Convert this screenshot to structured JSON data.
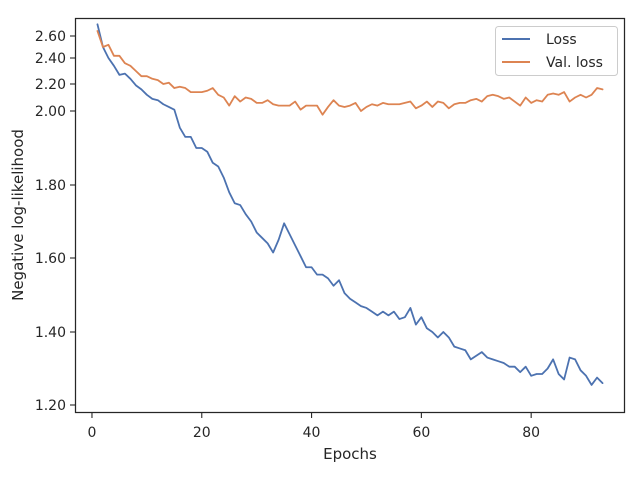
{
  "chart_data": {
    "type": "line",
    "title": "",
    "xlabel": "Epochs",
    "ylabel": "Negative log-likelihood",
    "xlim": [
      -3,
      97
    ],
    "ylim": [
      1.175,
      2.705
    ],
    "x_ticks": [
      0,
      20,
      40,
      60,
      80
    ],
    "y_ticks": [
      1.2,
      1.4,
      1.6,
      1.8,
      2.0,
      2.2,
      2.4,
      2.6
    ],
    "y_tick_labels": [
      "1.20",
      "1.40",
      "1.60",
      "1.80",
      "2.00",
      "2.20",
      "2.40",
      "2.60"
    ],
    "y_scale": "nonlinear (axis spacing compresses above 2.0)",
    "legend_position": "top-right",
    "grid": false,
    "series": [
      {
        "name": "Loss",
        "color": "#4c72b0",
        "x": [
          1,
          2,
          3,
          4,
          5,
          6,
          7,
          8,
          9,
          10,
          11,
          12,
          13,
          14,
          15,
          16,
          17,
          18,
          19,
          20,
          21,
          22,
          23,
          24,
          25,
          26,
          27,
          28,
          29,
          30,
          31,
          32,
          33,
          34,
          35,
          36,
          37,
          38,
          39,
          40,
          41,
          42,
          43,
          44,
          45,
          46,
          47,
          48,
          49,
          50,
          51,
          52,
          53,
          54,
          55,
          56,
          57,
          58,
          59,
          60,
          61,
          62,
          63,
          64,
          65,
          66,
          67,
          68,
          69,
          70,
          71,
          72,
          73,
          74,
          75,
          76,
          77,
          78,
          79,
          80,
          81,
          82,
          83,
          84,
          85,
          86,
          87,
          88,
          89,
          90,
          91,
          92,
          93
        ],
        "values": [
          2.67,
          2.5,
          2.4,
          2.34,
          2.27,
          2.28,
          2.24,
          2.19,
          2.16,
          2.12,
          2.09,
          2.08,
          2.05,
          2.03,
          2.01,
          1.955,
          1.93,
          1.93,
          1.9,
          1.9,
          1.89,
          1.86,
          1.85,
          1.82,
          1.78,
          1.75,
          1.745,
          1.72,
          1.7,
          1.67,
          1.655,
          1.64,
          1.615,
          1.65,
          1.695,
          1.665,
          1.635,
          1.605,
          1.575,
          1.575,
          1.555,
          1.555,
          1.545,
          1.525,
          1.54,
          1.505,
          1.49,
          1.48,
          1.47,
          1.465,
          1.455,
          1.445,
          1.455,
          1.445,
          1.455,
          1.435,
          1.44,
          1.465,
          1.42,
          1.44,
          1.41,
          1.4,
          1.385,
          1.4,
          1.385,
          1.36,
          1.355,
          1.35,
          1.325,
          1.335,
          1.345,
          1.33,
          1.325,
          1.32,
          1.315,
          1.305,
          1.305,
          1.29,
          1.305,
          1.28,
          1.285,
          1.285,
          1.3,
          1.325,
          1.285,
          1.27,
          1.33,
          1.325,
          1.295,
          1.28,
          1.255,
          1.275,
          1.26
        ]
      },
      {
        "name": "Val. loss",
        "color": "#dd8452",
        "x": [
          1,
          2,
          3,
          4,
          5,
          6,
          7,
          8,
          9,
          10,
          11,
          12,
          13,
          14,
          15,
          16,
          17,
          18,
          19,
          20,
          21,
          22,
          23,
          24,
          25,
          26,
          27,
          28,
          29,
          30,
          31,
          32,
          33,
          34,
          35,
          36,
          37,
          38,
          39,
          40,
          41,
          42,
          43,
          44,
          45,
          46,
          47,
          48,
          49,
          50,
          51,
          52,
          53,
          54,
          55,
          56,
          57,
          58,
          59,
          60,
          61,
          62,
          63,
          64,
          65,
          66,
          67,
          68,
          69,
          70,
          71,
          72,
          73,
          74,
          75,
          76,
          77,
          78,
          79,
          80,
          81,
          82,
          83,
          84,
          85,
          86,
          87,
          88,
          89,
          90,
          91,
          92,
          93
        ],
        "values": [
          2.63,
          2.5,
          2.52,
          2.42,
          2.42,
          2.36,
          2.34,
          2.3,
          2.26,
          2.26,
          2.24,
          2.23,
          2.2,
          2.21,
          2.17,
          2.18,
          2.17,
          2.14,
          2.14,
          2.14,
          2.15,
          2.17,
          2.12,
          2.1,
          2.04,
          2.11,
          2.07,
          2.1,
          2.09,
          2.06,
          2.06,
          2.08,
          2.05,
          2.04,
          2.04,
          2.04,
          2.07,
          2.01,
          2.04,
          2.04,
          2.04,
          1.99,
          2.03,
          2.08,
          2.04,
          2.03,
          2.04,
          2.06,
          2.0,
          2.03,
          2.05,
          2.04,
          2.06,
          2.05,
          2.05,
          2.05,
          2.06,
          2.07,
          2.02,
          2.04,
          2.07,
          2.03,
          2.07,
          2.06,
          2.02,
          2.05,
          2.06,
          2.06,
          2.08,
          2.09,
          2.07,
          2.11,
          2.12,
          2.11,
          2.09,
          2.1,
          2.07,
          2.04,
          2.1,
          2.06,
          2.08,
          2.07,
          2.12,
          2.13,
          2.12,
          2.14,
          2.07,
          2.1,
          2.12,
          2.1,
          2.12,
          2.17,
          2.16
        ]
      }
    ]
  }
}
